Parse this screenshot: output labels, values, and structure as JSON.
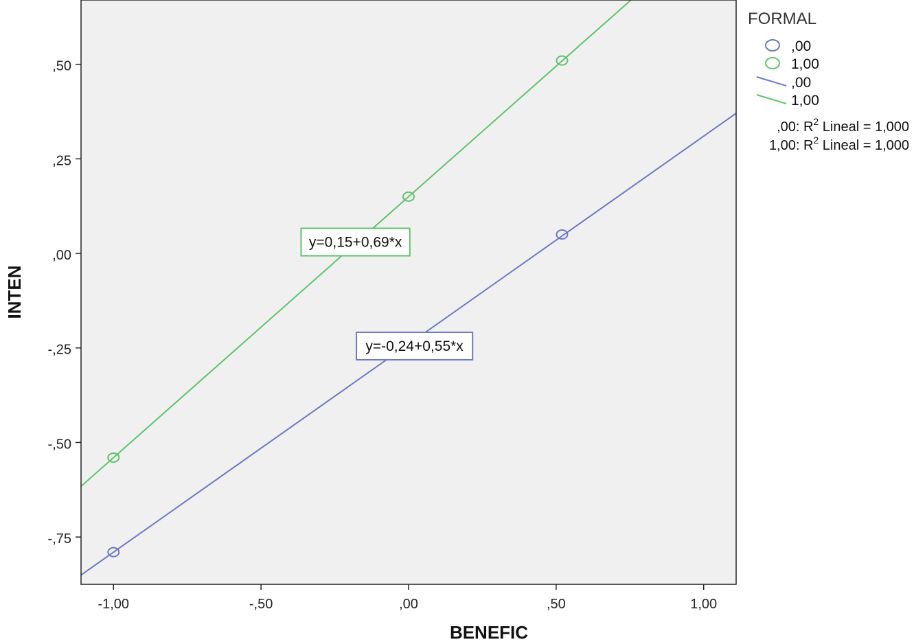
{
  "chart_data": {
    "type": "scatter",
    "title": "",
    "xlabel": "BENEFIC",
    "ylabel": "INTEN",
    "xlim": [
      -1.11,
      1.11
    ],
    "ylim": [
      -0.875,
      0.67
    ],
    "grid": false,
    "legend_placement": "right",
    "x_ticks": [
      {
        "value": -1.0,
        "label": "-1,00"
      },
      {
        "value": -0.5,
        "label": "-,50"
      },
      {
        "value": 0.0,
        "label": ",00"
      },
      {
        "value": 0.5,
        "label": ",50"
      },
      {
        "value": 1.0,
        "label": "1,00"
      }
    ],
    "y_ticks": [
      {
        "value": 0.5,
        "label": ",50"
      },
      {
        "value": 0.25,
        "label": ",25"
      },
      {
        "value": 0.0,
        "label": ",00"
      },
      {
        "value": -0.25,
        "label": "-,25"
      },
      {
        "value": -0.5,
        "label": "-,50"
      },
      {
        "value": -0.75,
        "label": "-,75"
      }
    ],
    "legend": {
      "title": "FORMAL",
      "marker_labels": [
        ",00",
        "1,00"
      ],
      "line_labels": [
        ",00",
        "1,00"
      ]
    },
    "r2_notes": [
      {
        "prefix": ",00: R",
        "sup": "2",
        "suffix": " Lineal = 1,000"
      },
      {
        "prefix": "1,00: R",
        "sup": "2",
        "suffix": " Lineal = 1,000"
      }
    ],
    "series": [
      {
        "name": ",00",
        "color": "#6d78c4",
        "points": [
          {
            "x": -1.0,
            "y": -0.79
          },
          {
            "x": 0.52,
            "y": 0.05
          }
        ],
        "fit": {
          "intercept": -0.24,
          "slope": 0.55,
          "label": "y=-0,24+0,55*x"
        }
      },
      {
        "name": "1,00",
        "color": "#5dc468",
        "points": [
          {
            "x": -1.0,
            "y": -0.54
          },
          {
            "x": 0.0,
            "y": 0.15
          },
          {
            "x": 0.52,
            "y": 0.51
          }
        ],
        "fit": {
          "intercept": 0.15,
          "slope": 0.69,
          "label": "y=0,15+0,69*x"
        }
      }
    ]
  }
}
